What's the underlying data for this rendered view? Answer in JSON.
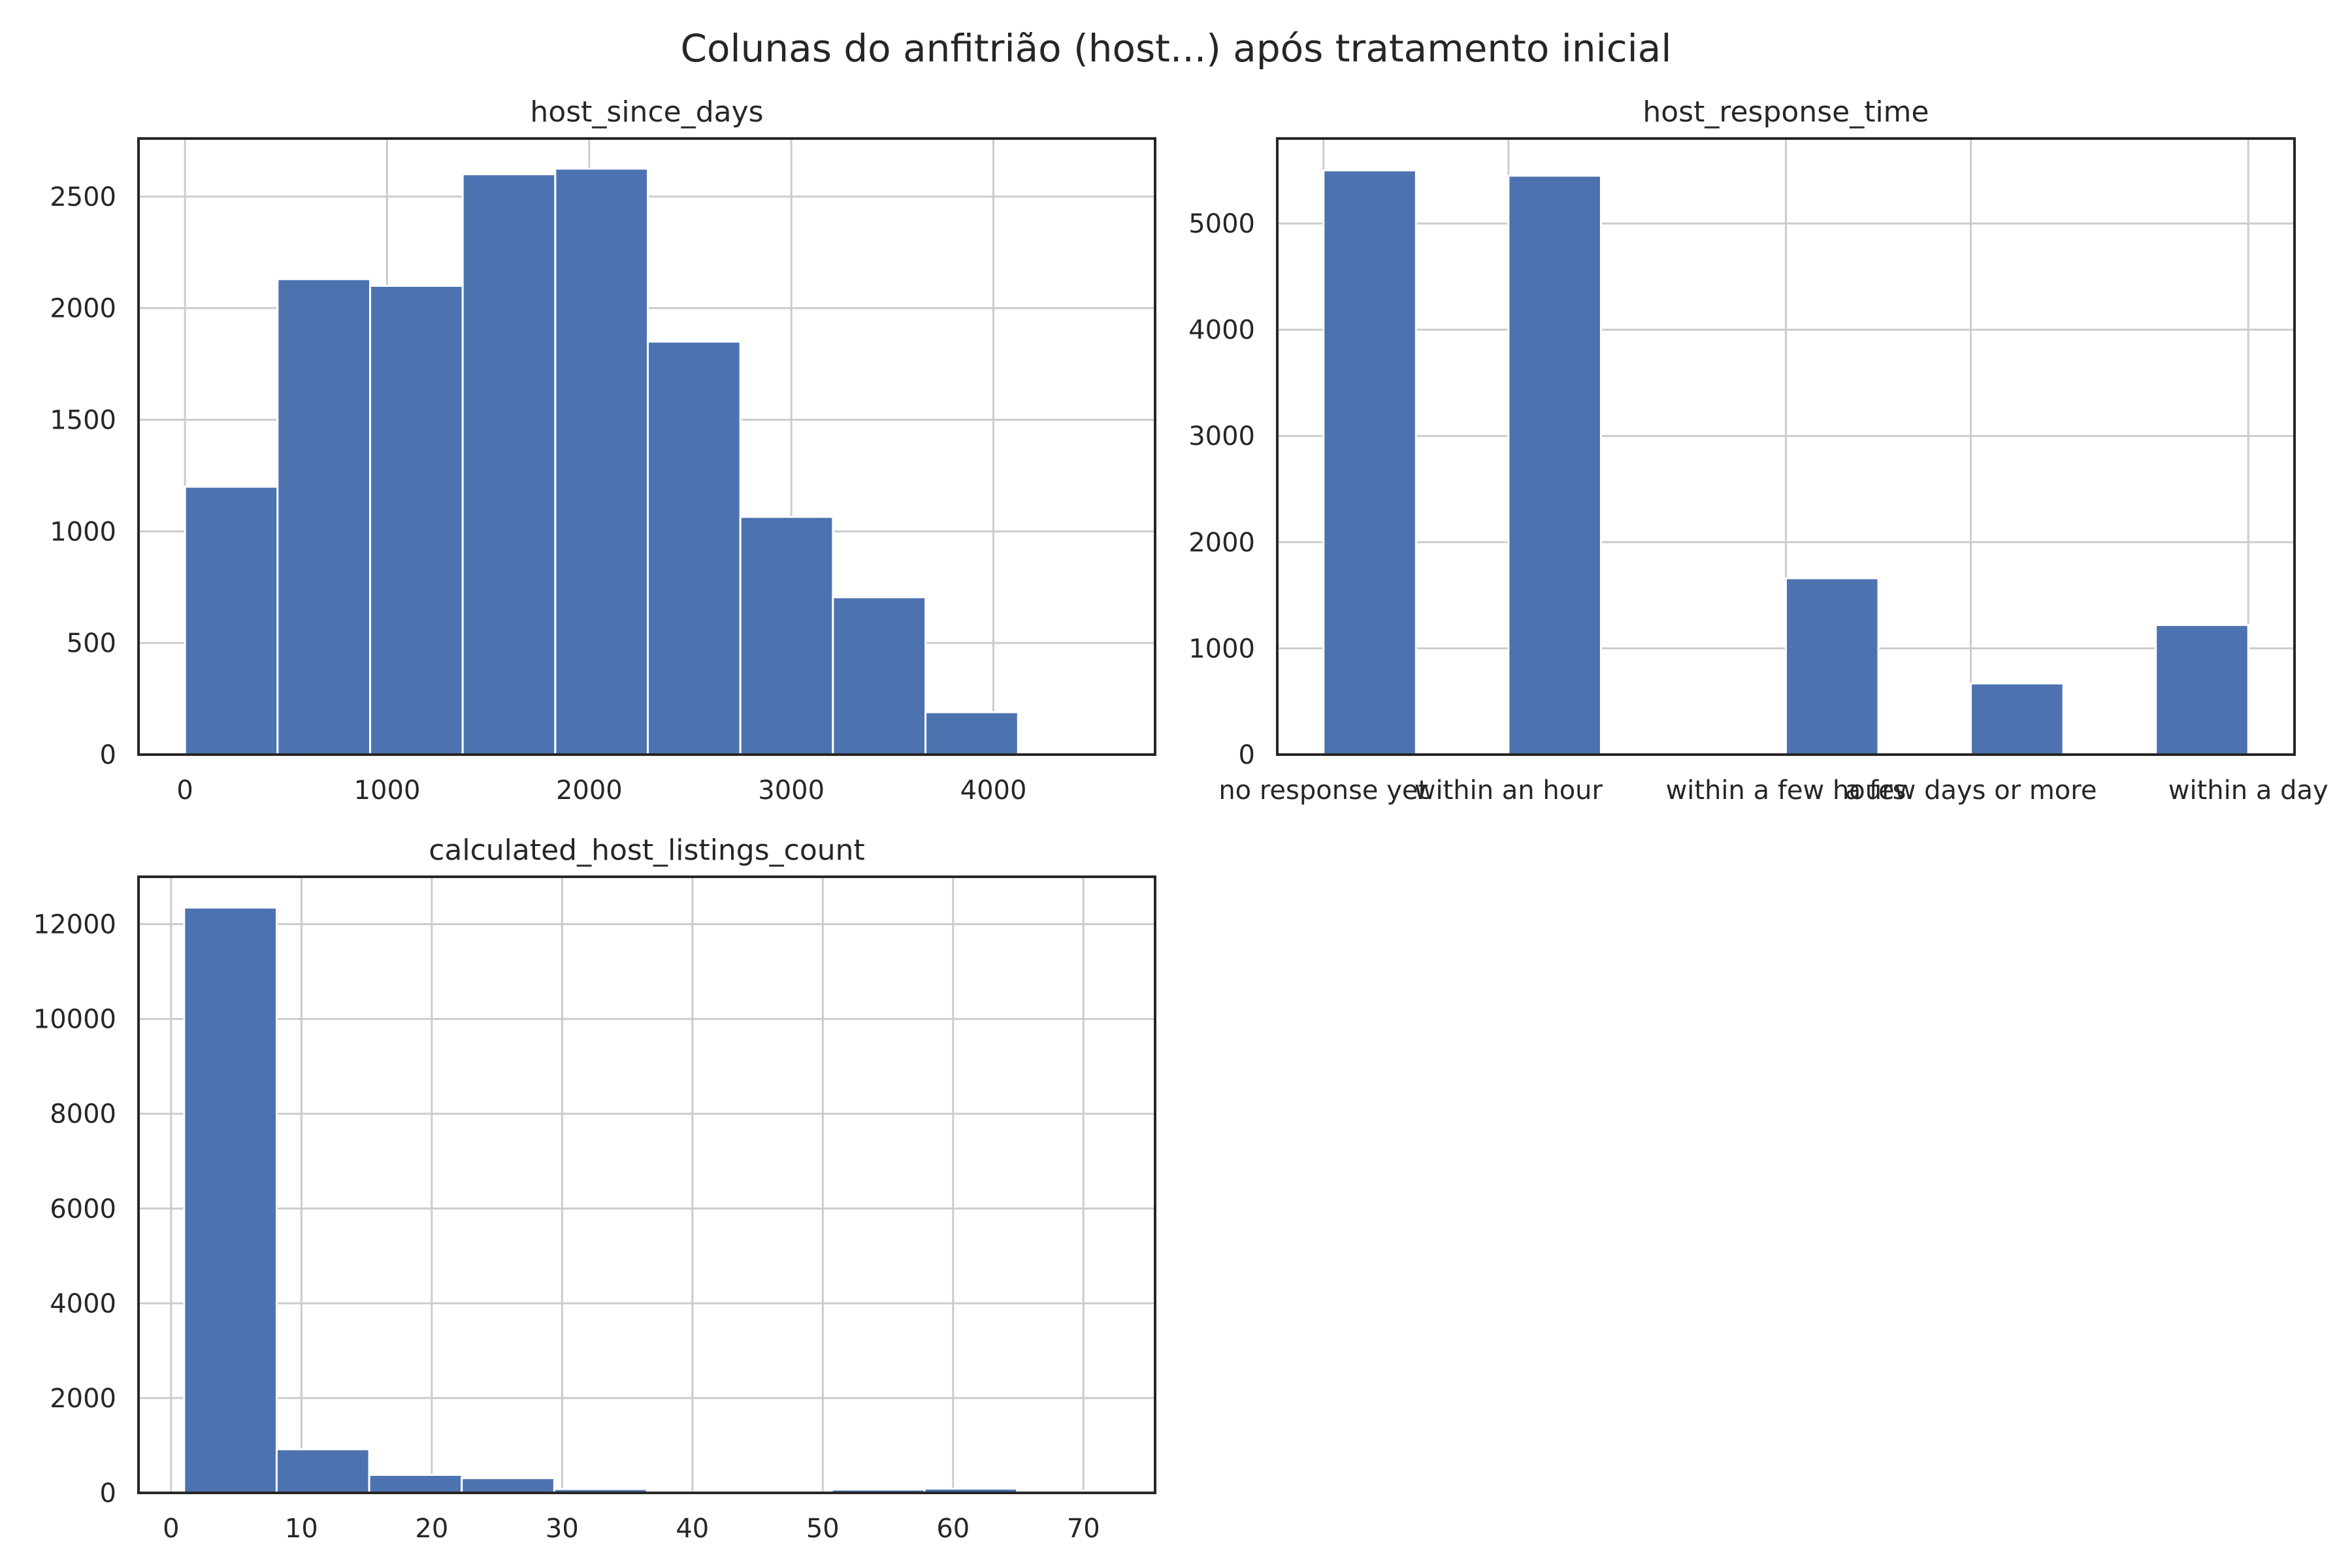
{
  "figure": {
    "title": "Colunas do anfitrião (host...) após tratamento inicial"
  },
  "chart_data": [
    {
      "type": "bar",
      "title": "host_since_days",
      "xlabel": "",
      "ylabel": "",
      "grid": true,
      "xlim": [
        -230,
        4800
      ],
      "ylim": [
        0,
        2760
      ],
      "xticks": [
        0,
        1000,
        2000,
        3000,
        4000
      ],
      "yticks": [
        0,
        500,
        1000,
        1500,
        2000,
        2500
      ],
      "bins": [
        {
          "x0": 0,
          "x1": 458,
          "value": 1200
        },
        {
          "x0": 458,
          "x1": 916,
          "value": 2130
        },
        {
          "x0": 916,
          "x1": 1374,
          "value": 2100
        },
        {
          "x0": 1374,
          "x1": 1832,
          "value": 2600
        },
        {
          "x0": 1832,
          "x1": 2290,
          "value": 2625
        },
        {
          "x0": 2290,
          "x1": 2748,
          "value": 1850
        },
        {
          "x0": 2748,
          "x1": 3206,
          "value": 1065
        },
        {
          "x0": 3206,
          "x1": 3664,
          "value": 705
        },
        {
          "x0": 3664,
          "x1": 4122,
          "value": 190
        },
        {
          "x0": 4122,
          "x1": 4580,
          "value": 5
        }
      ]
    },
    {
      "type": "bar",
      "title": "host_response_time",
      "xlabel": "",
      "ylabel": "",
      "grid": true,
      "xlim": [
        -0.25,
        5.25
      ],
      "ylim": [
        0,
        5800
      ],
      "categories": [
        "no response yet",
        "within an hour",
        "within a few hours",
        "a few days or more",
        "within a day"
      ],
      "category_positions": [
        0,
        1,
        2.5,
        3.5,
        5
      ],
      "yticks": [
        0,
        1000,
        2000,
        3000,
        4000,
        5000
      ],
      "bins": [
        {
          "x0": 0,
          "x1": 0.5,
          "value": 5500
        },
        {
          "x0": 1,
          "x1": 1.5,
          "value": 5450
        },
        {
          "x0": 2.5,
          "x1": 3,
          "value": 1660
        },
        {
          "x0": 3.5,
          "x1": 4,
          "value": 670
        },
        {
          "x0": 4.5,
          "x1": 5,
          "value": 1220
        }
      ]
    },
    {
      "type": "bar",
      "title": "calculated_host_listings_count",
      "xlabel": "",
      "ylabel": "",
      "grid": true,
      "xlim": [
        -2.5,
        75.5
      ],
      "ylim": [
        0,
        13000
      ],
      "xticks": [
        0,
        10,
        20,
        30,
        40,
        50,
        60,
        70
      ],
      "yticks": [
        0,
        2000,
        4000,
        6000,
        8000,
        10000,
        12000
      ],
      "bins": [
        {
          "x0": 1,
          "x1": 8.1,
          "value": 12350
        },
        {
          "x0": 8.1,
          "x1": 15.2,
          "value": 920
        },
        {
          "x0": 15.2,
          "x1": 22.3,
          "value": 380
        },
        {
          "x0": 22.3,
          "x1": 29.4,
          "value": 310
        },
        {
          "x0": 29.4,
          "x1": 36.5,
          "value": 80
        },
        {
          "x0": 36.5,
          "x1": 43.6,
          "value": 15
        },
        {
          "x0": 43.6,
          "x1": 50.7,
          "value": 10
        },
        {
          "x0": 50.7,
          "x1": 57.8,
          "value": 70
        },
        {
          "x0": 57.8,
          "x1": 64.9,
          "value": 90
        },
        {
          "x0": 64.9,
          "x1": 72,
          "value": 40
        }
      ]
    }
  ]
}
